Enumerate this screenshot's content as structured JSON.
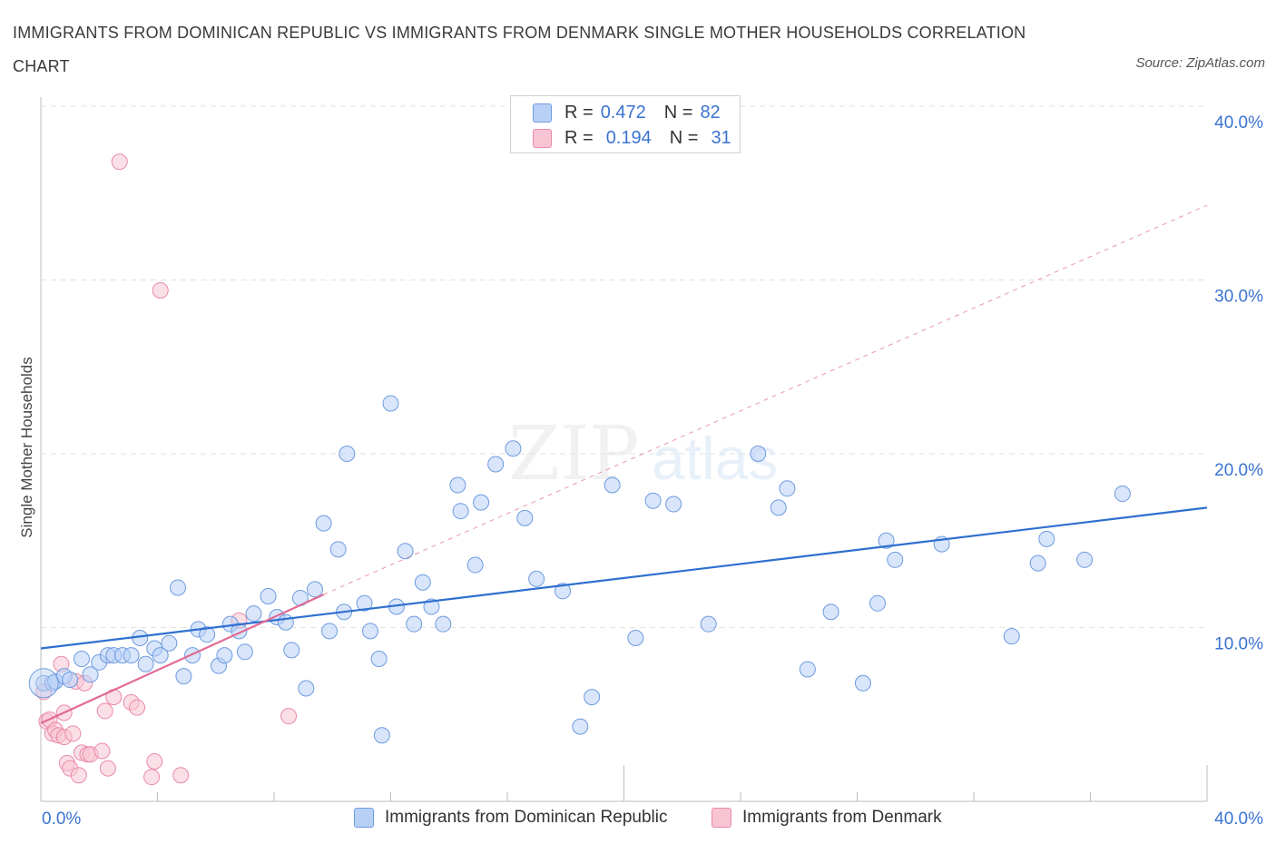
{
  "title": "IMMIGRANTS FROM DOMINICAN REPUBLIC VS IMMIGRANTS FROM DENMARK SINGLE MOTHER HOUSEHOLDS CORRELATION CHART",
  "source": "Source: ZipAtlas.com",
  "watermark": {
    "zip": "ZIP",
    "atlas": "atlas"
  },
  "legend": {
    "rows": [
      {
        "r_label": "R =",
        "r_value": "0.472",
        "n_label": "N =",
        "n_value": "82"
      },
      {
        "r_label": "R =",
        "r_value": "0.194",
        "n_label": "N =",
        "n_value": "31"
      }
    ]
  },
  "bottom_legend": [
    "Immigrants from Dominican Republic",
    "Immigrants from Denmark"
  ],
  "colors": {
    "blue_fill": "#b8d0f5",
    "blue_stroke": "#6e9be0",
    "blue_line": "#2f6fcf",
    "pink_fill": "#f8c4d4",
    "pink_stroke": "#e98aa8",
    "pink_line": "#e06a93",
    "grid": "#e2e2e2",
    "tick_text": "#3b73d1"
  },
  "chart_data": {
    "type": "scatter",
    "title": "IMMIGRANTS FROM DOMINICAN REPUBLIC VS IMMIGRANTS FROM DENMARK SINGLE MOTHER HOUSEHOLDS CORRELATION CHART",
    "xlabel": "",
    "ylabel": "Single Mother Households",
    "xlim": [
      0,
      40
    ],
    "ylim": [
      0,
      40
    ],
    "x_tick_labels": [
      "0.0%",
      "40.0%"
    ],
    "y_ticks": [
      10,
      20,
      30,
      40
    ],
    "y_tick_labels": [
      "10.0%",
      "20.0%",
      "30.0%",
      "40.0%"
    ],
    "series": [
      {
        "name": "Immigrants from Dominican Republic",
        "R": 0.472,
        "N": 82,
        "points": [
          [
            0.1,
            6.8
          ],
          [
            0.4,
            6.8
          ],
          [
            0.5,
            6.9
          ],
          [
            0.8,
            7.2
          ],
          [
            1.0,
            7.0
          ],
          [
            1.4,
            8.2
          ],
          [
            1.7,
            7.3
          ],
          [
            2.0,
            8.0
          ],
          [
            2.3,
            8.4
          ],
          [
            2.5,
            8.4
          ],
          [
            2.8,
            8.4
          ],
          [
            3.1,
            8.4
          ],
          [
            3.4,
            9.4
          ],
          [
            3.6,
            7.9
          ],
          [
            3.9,
            8.8
          ],
          [
            4.1,
            8.4
          ],
          [
            4.4,
            9.1
          ],
          [
            4.7,
            12.3
          ],
          [
            4.9,
            7.2
          ],
          [
            5.2,
            8.4
          ],
          [
            5.4,
            9.9
          ],
          [
            5.7,
            9.6
          ],
          [
            6.1,
            7.8
          ],
          [
            6.3,
            8.4
          ],
          [
            6.5,
            10.2
          ],
          [
            6.8,
            9.8
          ],
          [
            7.0,
            8.6
          ],
          [
            7.3,
            10.8
          ],
          [
            7.8,
            11.8
          ],
          [
            8.1,
            10.6
          ],
          [
            8.4,
            10.3
          ],
          [
            8.6,
            8.7
          ],
          [
            8.9,
            11.7
          ],
          [
            9.1,
            6.5
          ],
          [
            9.4,
            12.2
          ],
          [
            9.7,
            16.0
          ],
          [
            9.9,
            9.8
          ],
          [
            10.2,
            14.5
          ],
          [
            10.4,
            10.9
          ],
          [
            10.5,
            20.0
          ],
          [
            11.1,
            11.4
          ],
          [
            11.3,
            9.8
          ],
          [
            11.6,
            8.2
          ],
          [
            11.7,
            3.8
          ],
          [
            12.0,
            22.9
          ],
          [
            12.2,
            11.2
          ],
          [
            12.5,
            14.4
          ],
          [
            12.8,
            10.2
          ],
          [
            13.1,
            12.6
          ],
          [
            13.4,
            11.2
          ],
          [
            13.8,
            10.2
          ],
          [
            14.3,
            18.2
          ],
          [
            14.4,
            16.7
          ],
          [
            14.9,
            13.6
          ],
          [
            15.1,
            17.2
          ],
          [
            15.6,
            19.4
          ],
          [
            16.2,
            20.3
          ],
          [
            16.6,
            16.3
          ],
          [
            17.0,
            12.8
          ],
          [
            17.9,
            12.1
          ],
          [
            18.5,
            4.3
          ],
          [
            18.9,
            6.0
          ],
          [
            19.6,
            18.2
          ],
          [
            20.4,
            9.4
          ],
          [
            21.0,
            17.3
          ],
          [
            21.7,
            17.1
          ],
          [
            22.9,
            10.2
          ],
          [
            24.6,
            20.0
          ],
          [
            25.3,
            16.9
          ],
          [
            25.6,
            18.0
          ],
          [
            26.3,
            7.6
          ],
          [
            27.1,
            10.9
          ],
          [
            28.2,
            6.8
          ],
          [
            28.7,
            11.4
          ],
          [
            29.0,
            15.0
          ],
          [
            29.3,
            13.9
          ],
          [
            30.9,
            14.8
          ],
          [
            33.3,
            9.5
          ],
          [
            34.2,
            13.7
          ],
          [
            34.5,
            15.1
          ],
          [
            35.8,
            13.9
          ],
          [
            37.1,
            17.7
          ]
        ],
        "trend": {
          "x": [
            0,
            40
          ],
          "y": [
            8.8,
            16.9
          ]
        }
      },
      {
        "name": "Immigrants from Denmark",
        "R": 0.194,
        "N": 31,
        "points": [
          [
            0.1,
            6.3
          ],
          [
            0.2,
            4.6
          ],
          [
            0.3,
            4.7
          ],
          [
            0.4,
            3.9
          ],
          [
            0.5,
            4.1
          ],
          [
            0.6,
            3.8
          ],
          [
            0.7,
            7.9
          ],
          [
            0.8,
            3.7
          ],
          [
            0.8,
            5.1
          ],
          [
            0.9,
            2.2
          ],
          [
            1.0,
            1.9
          ],
          [
            1.1,
            3.9
          ],
          [
            1.2,
            6.9
          ],
          [
            1.3,
            1.5
          ],
          [
            1.4,
            2.8
          ],
          [
            1.5,
            6.8
          ],
          [
            1.6,
            2.7
          ],
          [
            1.7,
            2.7
          ],
          [
            2.1,
            2.9
          ],
          [
            2.2,
            5.2
          ],
          [
            2.3,
            1.9
          ],
          [
            2.5,
            6.0
          ],
          [
            2.7,
            36.8
          ],
          [
            3.1,
            5.7
          ],
          [
            3.3,
            5.4
          ],
          [
            3.8,
            1.4
          ],
          [
            3.9,
            2.3
          ],
          [
            4.1,
            29.4
          ],
          [
            4.8,
            1.5
          ],
          [
            6.8,
            10.4
          ],
          [
            8.5,
            4.9
          ]
        ],
        "trend": {
          "x": [
            0,
            9.7
          ],
          "y": [
            4.5,
            11.9
          ]
        },
        "trend_extension": {
          "x": [
            9.7,
            40
          ],
          "y": [
            11.9,
            34.3
          ]
        }
      }
    ]
  }
}
